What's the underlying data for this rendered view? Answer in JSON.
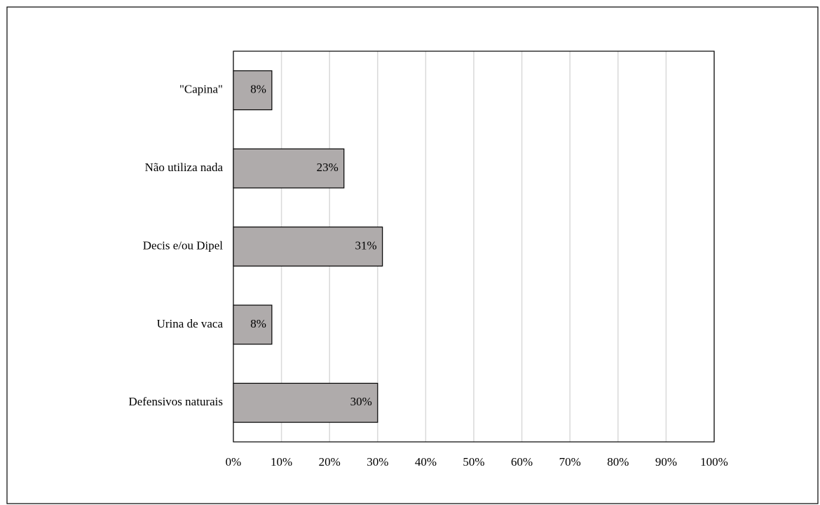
{
  "chart_data": {
    "type": "hbar",
    "categories": [
      "\"Capina\"",
      "Não utiliza nada",
      "Decis e/ou Dipel",
      "Urina de vaca",
      "Defensivos naturais"
    ],
    "values": [
      8,
      23,
      31,
      8,
      30
    ],
    "value_labels": [
      "8%",
      "23%",
      "31%",
      "8%",
      "30%"
    ],
    "color": "#afabab",
    "xlim": [
      0,
      100
    ],
    "xticks": [
      {
        "value": 0,
        "label": "0%"
      },
      {
        "value": 10,
        "label": "10%"
      },
      {
        "value": 20,
        "label": "20%"
      },
      {
        "value": 30,
        "label": "30%"
      },
      {
        "value": 40,
        "label": "40%"
      },
      {
        "value": 50,
        "label": "50%"
      },
      {
        "value": 60,
        "label": "60%"
      },
      {
        "value": 70,
        "label": "70%"
      },
      {
        "value": 80,
        "label": "80%"
      },
      {
        "value": 90,
        "label": "90%"
      },
      {
        "value": 100,
        "label": "100%"
      }
    ],
    "grid": true
  }
}
